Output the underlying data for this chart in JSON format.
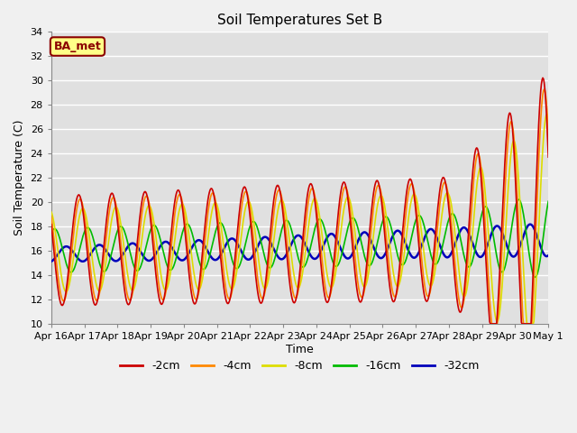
{
  "title": "Soil Temperatures Set B",
  "xlabel": "Time",
  "ylabel": "Soil Temperature (C)",
  "ylim": [
    10,
    34
  ],
  "yticks": [
    10,
    12,
    14,
    16,
    18,
    20,
    22,
    24,
    26,
    28,
    30,
    32,
    34
  ],
  "plot_bg_color": "#e0e0e0",
  "annotation_text": "BA_met",
  "annotation_bg": "#ffff88",
  "annotation_border": "#8b0000",
  "series_colors": {
    "-2cm": "#cc0000",
    "-4cm": "#ff8800",
    "-8cm": "#dddd00",
    "-16cm": "#00bb00",
    "-32cm": "#0000bb"
  },
  "x_ticklabels": [
    "Apr 16",
    "Apr 17",
    "Apr 18",
    "Apr 19",
    "Apr 20",
    "Apr 21",
    "Apr 22",
    "Apr 23",
    "Apr 24",
    "Apr 25",
    "Apr 26",
    "Apr 27",
    "Apr 28",
    "Apr 29",
    "Apr 30",
    "May 1"
  ],
  "n_points": 721,
  "time_days": 15
}
